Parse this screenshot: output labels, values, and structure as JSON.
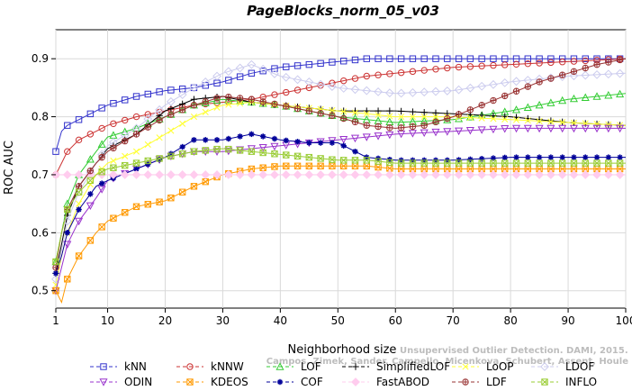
{
  "chart_data": {
    "type": "line",
    "title": "PageBlocks_norm_05_v03",
    "xlabel": "Neighborhood size",
    "ylabel": "ROC AUC",
    "xlim": [
      1,
      100
    ],
    "ylim": [
      0.47,
      0.95
    ],
    "xticks": [
      1,
      10,
      20,
      30,
      40,
      50,
      60,
      70,
      80,
      90,
      100
    ],
    "yticks": [
      0.5,
      0.6,
      0.7,
      0.8,
      0.9
    ],
    "grid": true,
    "legend_position": "bottom",
    "watermark": {
      "line1": "Unsupervised Outlier Detection. DAMI, 2015.",
      "line2": "Campos, Zimek, Sander, Campello, Micenkova, Schubert, Assent, Houle"
    },
    "series": [
      {
        "name": "kNN",
        "color": "#3333cc",
        "marker": "square",
        "points": [
          [
            1,
            0.74
          ],
          [
            2,
            0.775
          ],
          [
            3,
            0.785
          ],
          [
            5,
            0.795
          ],
          [
            8,
            0.81
          ],
          [
            10,
            0.82
          ],
          [
            15,
            0.835
          ],
          [
            20,
            0.845
          ],
          [
            25,
            0.85
          ],
          [
            30,
            0.86
          ],
          [
            35,
            0.875
          ],
          [
            40,
            0.885
          ],
          [
            45,
            0.89
          ],
          [
            50,
            0.895
          ],
          [
            55,
            0.9
          ],
          [
            60,
            0.9
          ],
          [
            70,
            0.9
          ],
          [
            80,
            0.9
          ],
          [
            90,
            0.9
          ],
          [
            100,
            0.9
          ]
        ]
      },
      {
        "name": "kNNW",
        "color": "#cc3333",
        "marker": "circle",
        "points": [
          [
            1,
            0.7
          ],
          [
            2,
            0.72
          ],
          [
            3,
            0.74
          ],
          [
            5,
            0.76
          ],
          [
            8,
            0.775
          ],
          [
            10,
            0.785
          ],
          [
            15,
            0.8
          ],
          [
            20,
            0.81
          ],
          [
            25,
            0.82
          ],
          [
            30,
            0.825
          ],
          [
            35,
            0.83
          ],
          [
            40,
            0.84
          ],
          [
            45,
            0.85
          ],
          [
            50,
            0.86
          ],
          [
            55,
            0.87
          ],
          [
            60,
            0.875
          ],
          [
            70,
            0.885
          ],
          [
            80,
            0.89
          ],
          [
            90,
            0.895
          ],
          [
            100,
            0.9
          ]
        ]
      },
      {
        "name": "LOF",
        "color": "#33cc33",
        "marker": "triangle-up",
        "points": [
          [
            1,
            0.55
          ],
          [
            2,
            0.6
          ],
          [
            3,
            0.65
          ],
          [
            5,
            0.7
          ],
          [
            8,
            0.74
          ],
          [
            10,
            0.765
          ],
          [
            15,
            0.78
          ],
          [
            20,
            0.8
          ],
          [
            25,
            0.82
          ],
          [
            30,
            0.83
          ],
          [
            35,
            0.825
          ],
          [
            40,
            0.82
          ],
          [
            45,
            0.81
          ],
          [
            50,
            0.8
          ],
          [
            55,
            0.795
          ],
          [
            60,
            0.79
          ],
          [
            70,
            0.795
          ],
          [
            80,
            0.81
          ],
          [
            90,
            0.83
          ],
          [
            100,
            0.84
          ]
        ]
      },
      {
        "name": "SimplifiedLOF",
        "color": "#000000",
        "marker": "plus",
        "points": [
          [
            1,
            0.53
          ],
          [
            2,
            0.58
          ],
          [
            3,
            0.63
          ],
          [
            5,
            0.68
          ],
          [
            8,
            0.72
          ],
          [
            10,
            0.745
          ],
          [
            15,
            0.77
          ],
          [
            20,
            0.81
          ],
          [
            25,
            0.83
          ],
          [
            30,
            0.835
          ],
          [
            35,
            0.825
          ],
          [
            40,
            0.82
          ],
          [
            45,
            0.815
          ],
          [
            50,
            0.81
          ],
          [
            55,
            0.81
          ],
          [
            60,
            0.81
          ],
          [
            70,
            0.805
          ],
          [
            80,
            0.8
          ],
          [
            90,
            0.79
          ],
          [
            100,
            0.785
          ]
        ]
      },
      {
        "name": "LoOP",
        "color": "#ffff33",
        "marker": "x",
        "points": [
          [
            1,
            0.51
          ],
          [
            2,
            0.56
          ],
          [
            3,
            0.6
          ],
          [
            5,
            0.65
          ],
          [
            8,
            0.7
          ],
          [
            10,
            0.72
          ],
          [
            15,
            0.74
          ],
          [
            20,
            0.77
          ],
          [
            25,
            0.8
          ],
          [
            30,
            0.82
          ],
          [
            35,
            0.825
          ],
          [
            40,
            0.82
          ],
          [
            45,
            0.815
          ],
          [
            50,
            0.81
          ],
          [
            55,
            0.805
          ],
          [
            60,
            0.8
          ],
          [
            70,
            0.8
          ],
          [
            80,
            0.795
          ],
          [
            90,
            0.79
          ],
          [
            100,
            0.785
          ]
        ]
      },
      {
        "name": "LDOF",
        "color": "#ccccee",
        "marker": "diamond",
        "points": [
          [
            1,
            0.52
          ],
          [
            2,
            0.57
          ],
          [
            3,
            0.62
          ],
          [
            5,
            0.67
          ],
          [
            8,
            0.72
          ],
          [
            10,
            0.75
          ],
          [
            15,
            0.78
          ],
          [
            20,
            0.82
          ],
          [
            25,
            0.85
          ],
          [
            30,
            0.875
          ],
          [
            35,
            0.89
          ],
          [
            40,
            0.87
          ],
          [
            45,
            0.86
          ],
          [
            50,
            0.85
          ],
          [
            55,
            0.845
          ],
          [
            60,
            0.84
          ],
          [
            70,
            0.845
          ],
          [
            80,
            0.86
          ],
          [
            90,
            0.87
          ],
          [
            100,
            0.875
          ]
        ]
      },
      {
        "name": "ODIN",
        "color": "#9933cc",
        "marker": "triangle-down",
        "points": [
          [
            1,
            0.5
          ],
          [
            2,
            0.54
          ],
          [
            3,
            0.58
          ],
          [
            5,
            0.62
          ],
          [
            8,
            0.66
          ],
          [
            10,
            0.69
          ],
          [
            15,
            0.71
          ],
          [
            20,
            0.73
          ],
          [
            25,
            0.74
          ],
          [
            30,
            0.74
          ],
          [
            35,
            0.745
          ],
          [
            40,
            0.75
          ],
          [
            45,
            0.755
          ],
          [
            50,
            0.76
          ],
          [
            55,
            0.765
          ],
          [
            60,
            0.77
          ],
          [
            70,
            0.775
          ],
          [
            80,
            0.78
          ],
          [
            90,
            0.78
          ],
          [
            100,
            0.78
          ]
        ]
      },
      {
        "name": "KDEOS",
        "color": "#ff9900",
        "marker": "square-x",
        "points": [
          [
            1,
            0.5
          ],
          [
            2,
            0.48
          ],
          [
            3,
            0.52
          ],
          [
            5,
            0.56
          ],
          [
            8,
            0.6
          ],
          [
            10,
            0.62
          ],
          [
            15,
            0.645
          ],
          [
            20,
            0.655
          ],
          [
            25,
            0.68
          ],
          [
            30,
            0.7
          ],
          [
            35,
            0.71
          ],
          [
            40,
            0.715
          ],
          [
            45,
            0.715
          ],
          [
            50,
            0.715
          ],
          [
            55,
            0.715
          ],
          [
            60,
            0.71
          ],
          [
            70,
            0.71
          ],
          [
            80,
            0.71
          ],
          [
            90,
            0.71
          ],
          [
            100,
            0.71
          ]
        ]
      },
      {
        "name": "COF",
        "color": "#000099",
        "marker": "asterisk",
        "points": [
          [
            1,
            0.53
          ],
          [
            2,
            0.56
          ],
          [
            3,
            0.6
          ],
          [
            5,
            0.64
          ],
          [
            8,
            0.68
          ],
          [
            10,
            0.69
          ],
          [
            15,
            0.71
          ],
          [
            20,
            0.73
          ],
          [
            25,
            0.76
          ],
          [
            30,
            0.76
          ],
          [
            35,
            0.77
          ],
          [
            40,
            0.76
          ],
          [
            45,
            0.755
          ],
          [
            50,
            0.755
          ],
          [
            55,
            0.73
          ],
          [
            60,
            0.725
          ],
          [
            70,
            0.725
          ],
          [
            80,
            0.73
          ],
          [
            90,
            0.73
          ],
          [
            100,
            0.73
          ]
        ]
      },
      {
        "name": "FastABOD",
        "color": "#ffccee",
        "marker": "diamond-filled",
        "points": [
          [
            1,
            0.7
          ],
          [
            2,
            0.7
          ],
          [
            3,
            0.7
          ],
          [
            5,
            0.7
          ],
          [
            8,
            0.7
          ],
          [
            10,
            0.7
          ],
          [
            15,
            0.7
          ],
          [
            20,
            0.7
          ],
          [
            25,
            0.7
          ],
          [
            30,
            0.7
          ],
          [
            35,
            0.7
          ],
          [
            40,
            0.7
          ],
          [
            45,
            0.7
          ],
          [
            50,
            0.7
          ],
          [
            55,
            0.7
          ],
          [
            60,
            0.7
          ],
          [
            70,
            0.7
          ],
          [
            80,
            0.7
          ],
          [
            90,
            0.7
          ],
          [
            100,
            0.7
          ]
        ]
      },
      {
        "name": "LDF",
        "color": "#993333",
        "marker": "circle-plus",
        "points": [
          [
            1,
            0.54
          ],
          [
            2,
            0.6
          ],
          [
            3,
            0.64
          ],
          [
            5,
            0.68
          ],
          [
            8,
            0.72
          ],
          [
            10,
            0.74
          ],
          [
            15,
            0.77
          ],
          [
            20,
            0.8
          ],
          [
            25,
            0.82
          ],
          [
            30,
            0.835
          ],
          [
            35,
            0.83
          ],
          [
            40,
            0.82
          ],
          [
            45,
            0.81
          ],
          [
            50,
            0.8
          ],
          [
            55,
            0.785
          ],
          [
            60,
            0.78
          ],
          [
            65,
            0.785
          ],
          [
            70,
            0.8
          ],
          [
            75,
            0.82
          ],
          [
            80,
            0.84
          ],
          [
            85,
            0.86
          ],
          [
            90,
            0.875
          ],
          [
            95,
            0.89
          ],
          [
            100,
            0.9
          ]
        ]
      },
      {
        "name": "INFLO",
        "color": "#99cc33",
        "marker": "square-x",
        "points": [
          [
            1,
            0.55
          ],
          [
            2,
            0.6
          ],
          [
            3,
            0.64
          ],
          [
            5,
            0.67
          ],
          [
            8,
            0.7
          ],
          [
            10,
            0.71
          ],
          [
            15,
            0.72
          ],
          [
            20,
            0.73
          ],
          [
            25,
            0.74
          ],
          [
            30,
            0.745
          ],
          [
            35,
            0.74
          ],
          [
            40,
            0.735
          ],
          [
            45,
            0.73
          ],
          [
            50,
            0.725
          ],
          [
            55,
            0.725
          ],
          [
            60,
            0.72
          ],
          [
            70,
            0.72
          ],
          [
            80,
            0.72
          ],
          [
            90,
            0.72
          ],
          [
            100,
            0.72
          ]
        ]
      }
    ]
  }
}
